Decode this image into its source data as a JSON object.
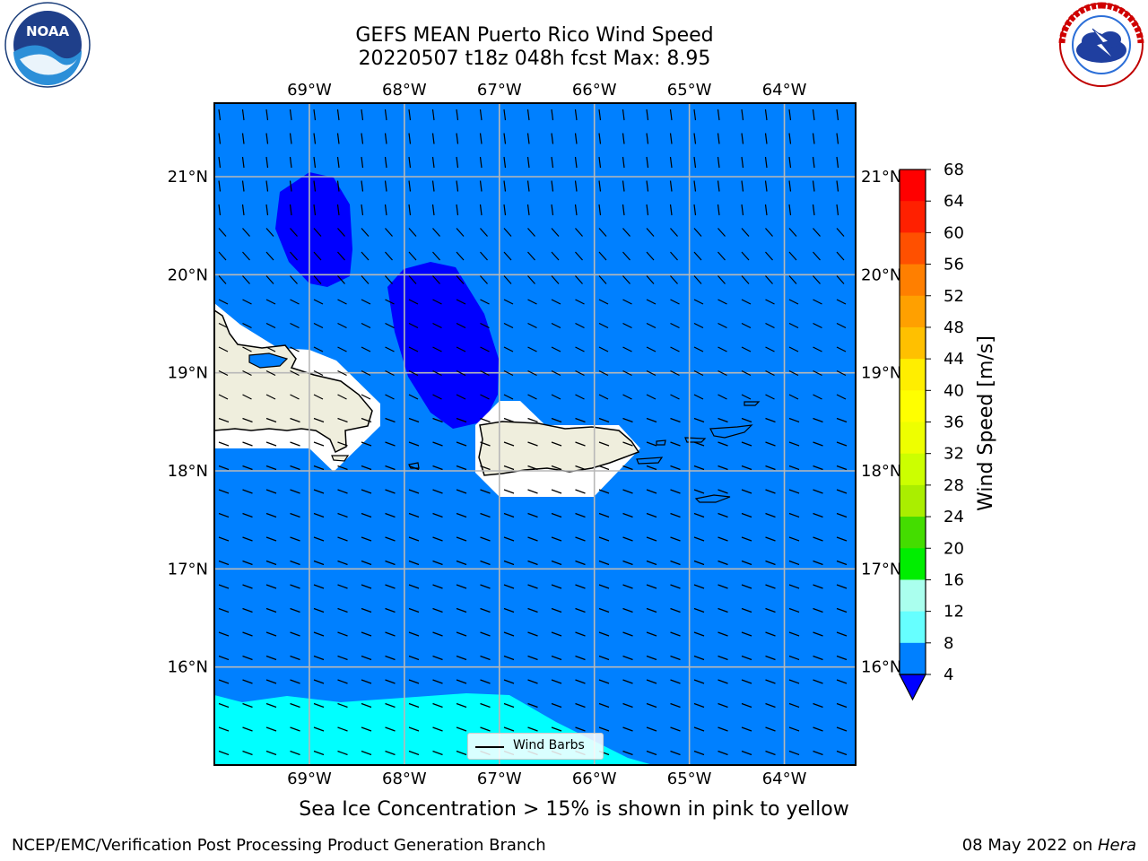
{
  "title": {
    "line1": "GEFS MEAN Puerto Rico Wind Speed",
    "line2": "20220507 t18z 048h fcst   Max: 8.95"
  },
  "note": "Sea Ice Concentration > 15% is shown in pink to yellow",
  "footer": {
    "left": "NCEP/EMC/Verification Post Processing Product Generation Branch",
    "date": "08 May 2022 on ",
    "machine": "Hera"
  },
  "logos": {
    "left": "noaa-logo",
    "right": "nws-logo"
  },
  "legend": {
    "label": "Wind Barbs"
  },
  "map": {
    "lon_range": [
      -70.0,
      -63.25
    ],
    "lat_range": [
      15.0,
      21.75
    ],
    "lon_ticks": [
      "69°W",
      "68°W",
      "67°W",
      "66°W",
      "65°W",
      "64°W"
    ],
    "lat_ticks": [
      "21°N",
      "20°N",
      "19°N",
      "18°N",
      "17°N",
      "16°N"
    ],
    "grid": true,
    "ocean_color": "#0080ff",
    "low_wind_color": "#0000ff",
    "higher_wind_color": "#00ffff",
    "land_color": "#efeedd"
  },
  "colorbar": {
    "label": "Wind Speed [m/s]",
    "ticks": [
      "68",
      "64",
      "60",
      "56",
      "52",
      "48",
      "44",
      "40",
      "36",
      "32",
      "28",
      "24",
      "20",
      "16",
      "12",
      "8",
      "4"
    ],
    "colors_high_to_low": [
      "#ff0000",
      "#ff2000",
      "#ff5000",
      "#ff7f00",
      "#ffa000",
      "#ffc000",
      "#ffee00",
      "#ffff00",
      "#eeff00",
      "#ccff00",
      "#aaee00",
      "#44dd00",
      "#00ee00",
      "#55ee66",
      "#aaffee",
      "#66ffff",
      "#00ffff",
      "#0080ff"
    ],
    "extend_color": "#0000ff"
  }
}
